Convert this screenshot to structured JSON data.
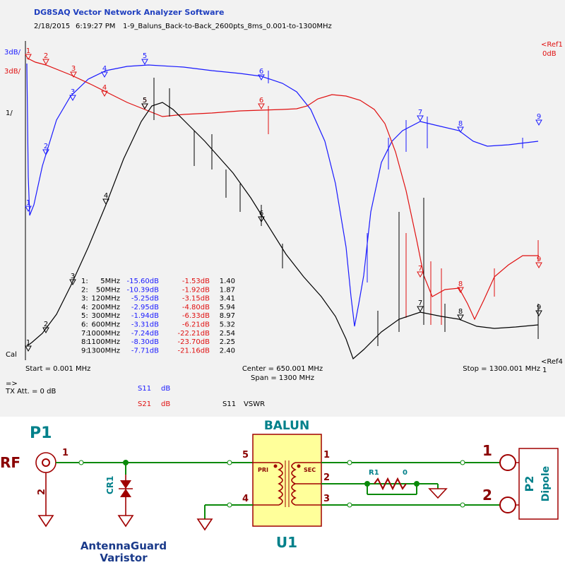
{
  "header": {
    "title": "DG8SAQ Vector Network Analyzer Software",
    "date": "2/18/2015",
    "time": "6:19:27 PM",
    "file": "1-9_Baluns_Back-to-Back_2600pts_8ms_0.001-to-1300MHz"
  },
  "plot": {
    "scale_s11": "3dB/",
    "scale_s21": "3dB/",
    "scale_vswr": "1/",
    "cal": "Cal",
    "ref_top": "<Ref1",
    "ref_top_value": "0dB",
    "ref_bottom": "<Ref4",
    "ref_bottom_value": "1",
    "marker_numbers": [
      "1",
      "2",
      "3",
      "4",
      "5",
      "6",
      "7",
      "8",
      "9"
    ],
    "markers": [
      [
        "1:",
        "5MHz",
        "-15.60dB",
        "-1.53dB",
        "1.40"
      ],
      [
        "2:",
        "50MHz",
        "-10.39dB",
        "-1.92dB",
        "1.87"
      ],
      [
        "3:",
        "120MHz",
        "-5.25dB",
        "-3.15dB",
        "3.41"
      ],
      [
        "4:",
        "200MHz",
        "-2.95dB",
        "-4.80dB",
        "5.94"
      ],
      [
        "5:",
        "300MHz",
        "-1.94dB",
        "-6.33dB",
        "8.97"
      ],
      [
        "6:",
        "600MHz",
        "-3.31dB",
        "-6.21dB",
        "5.32"
      ],
      [
        "7:",
        "1000MHz",
        "-7.24dB",
        "-22.21dB",
        "2.54"
      ],
      [
        "8:",
        "1100MHz",
        "-8.30dB",
        "-23.70dB",
        "2.25"
      ],
      [
        "9:",
        "1300MHz",
        "-7.71dB",
        "-21.16dB",
        "2.40"
      ]
    ]
  },
  "footer": {
    "start": "Start = 0.001 MHz",
    "center": "Center = 650.001 MHz",
    "span": "Span = 1300 MHz",
    "stop": "Stop = 1300.001 MHz",
    "arrow": "=>",
    "tx_att": "TX Att. = 0 dB",
    "legend": [
      {
        "trace": "S11",
        "unit": "dB"
      },
      {
        "trace": "S21",
        "unit": "dB"
      },
      {
        "trace": "S11",
        "unit": "VSWR"
      }
    ]
  },
  "schematic": {
    "p1": {
      "ref": "P1",
      "label": "RF",
      "pin1": "1",
      "pin2": "2"
    },
    "cr1": {
      "ref": "CR1",
      "desc_1": "AntennaGuard",
      "desc_2": "Varistor"
    },
    "u1": {
      "value": "BALUN",
      "ref": "U1",
      "pins": [
        "5",
        "4",
        "1",
        "2",
        "3"
      ],
      "pri": "PRI",
      "sec": "SEC"
    },
    "r1": {
      "ref": "R1",
      "value": "0"
    },
    "p2": {
      "ref": "P2",
      "value": "Dipole",
      "pin1": "1",
      "pin2": "2"
    }
  }
}
